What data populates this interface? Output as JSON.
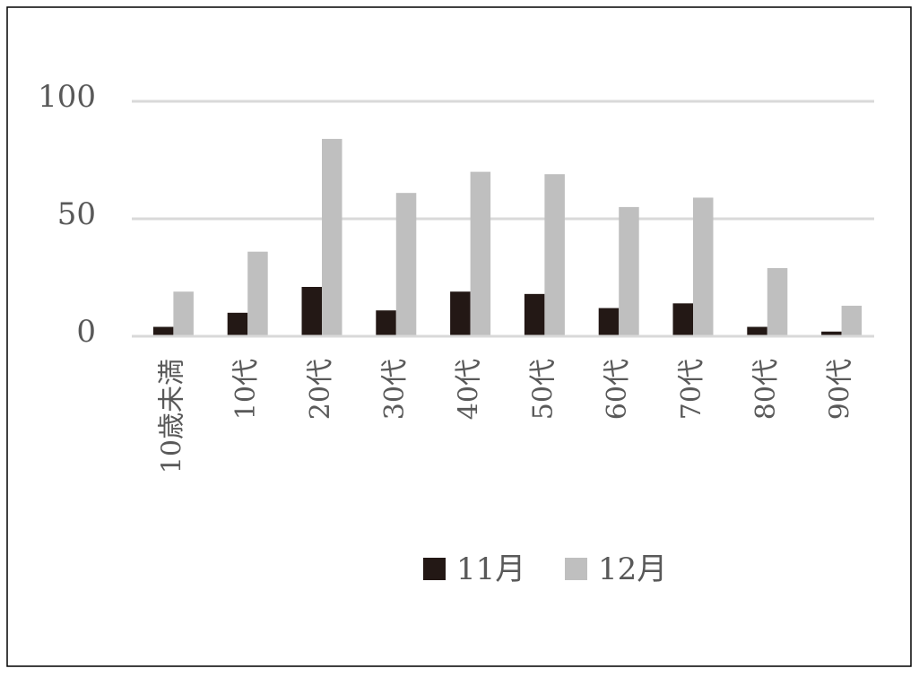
{
  "chart_data": {
    "type": "bar",
    "categories": [
      "10歳未満",
      "10代",
      "20代",
      "30代",
      "40代",
      "50代",
      "60代",
      "70代",
      "80代",
      "90代"
    ],
    "series": [
      {
        "name": "11月",
        "color": "#231815",
        "values": [
          4,
          10,
          21,
          11,
          19,
          18,
          12,
          14,
          4,
          2
        ]
      },
      {
        "name": "12月",
        "color": "#bfbfbf",
        "values": [
          19,
          36,
          84,
          61,
          70,
          69,
          55,
          59,
          29,
          13
        ]
      }
    ],
    "ylim": [
      0,
      100
    ],
    "yticks": [
      0,
      50,
      100
    ],
    "grid": true,
    "legend": "bottom"
  }
}
